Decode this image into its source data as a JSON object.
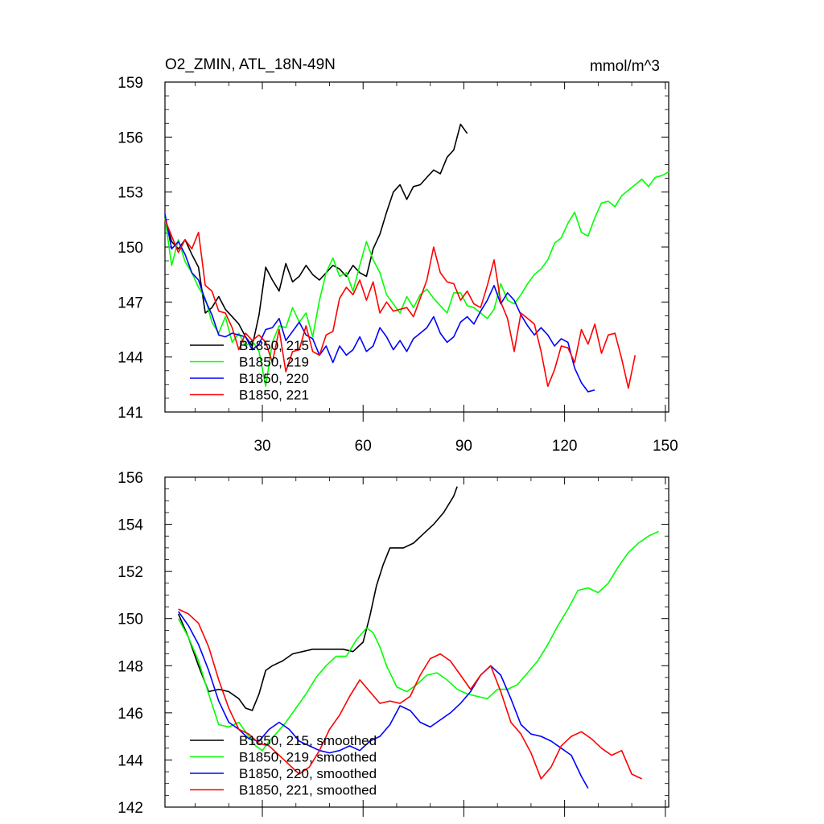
{
  "chart_data": [
    {
      "type": "line",
      "title": "O2_ZMIN, ATL_18N-49N",
      "units": "mmol/m^3",
      "xlim": [
        1,
        151
      ],
      "ylim": [
        141,
        159
      ],
      "xticks": [
        30,
        60,
        90,
        120,
        150
      ],
      "yticks": [
        141,
        144,
        147,
        150,
        153,
        156,
        159
      ],
      "show_xtick_labels": true,
      "legend_position": "bottom-left",
      "series": [
        {
          "name": "B1850, 215",
          "color": "#000000",
          "x": [
            1,
            3,
            5,
            7,
            9,
            11,
            13,
            15,
            17,
            19,
            21,
            23,
            25,
            27,
            29,
            31,
            33,
            35,
            37,
            39,
            41,
            43,
            45,
            47,
            49,
            51,
            53,
            55,
            57,
            59,
            61,
            63,
            65,
            67,
            69,
            71,
            73,
            75,
            77,
            79,
            81,
            83,
            85,
            87,
            89,
            91
          ],
          "y": [
            151.6,
            150.3,
            149.9,
            150.4,
            149.6,
            148.9,
            146.4,
            146.7,
            147.3,
            146.6,
            146.2,
            145.8,
            145.1,
            144.6,
            146.3,
            148.9,
            148.2,
            147.6,
            149.1,
            148.1,
            148.4,
            149.0,
            148.5,
            148.2,
            148.6,
            149.0,
            148.8,
            148.4,
            149.0,
            148.6,
            148.4,
            149.9,
            150.7,
            151.9,
            153.0,
            153.4,
            152.6,
            153.3,
            153.4,
            153.8,
            154.2,
            154.0,
            154.9,
            155.3,
            156.7,
            156.2
          ]
        },
        {
          "name": "B1850, 219",
          "color": "#00ff00",
          "x": [
            1,
            3,
            5,
            7,
            9,
            11,
            13,
            15,
            17,
            19,
            21,
            23,
            25,
            27,
            29,
            31,
            33,
            35,
            37,
            39,
            41,
            43,
            45,
            47,
            49,
            51,
            53,
            55,
            57,
            59,
            61,
            63,
            65,
            67,
            69,
            71,
            73,
            75,
            77,
            79,
            81,
            83,
            85,
            87,
            89,
            91,
            93,
            95,
            97,
            99,
            101,
            103,
            105,
            107,
            109,
            111,
            113,
            115,
            117,
            119,
            121,
            123,
            125,
            127,
            129,
            131,
            133,
            135,
            137,
            139,
            141,
            143,
            145,
            147,
            149,
            151
          ],
          "y": [
            151.6,
            149.0,
            150.4,
            149.2,
            148.6,
            147.8,
            147.2,
            145.9,
            145.3,
            146.2,
            144.8,
            145.3,
            144.6,
            144.9,
            144.3,
            142.4,
            144.8,
            145.7,
            145.6,
            146.7,
            145.9,
            146.4,
            145.1,
            147.1,
            148.6,
            149.4,
            148.4,
            148.6,
            147.6,
            149.0,
            150.3,
            149.3,
            148.6,
            147.4,
            146.9,
            146.4,
            147.3,
            146.7,
            147.4,
            147.7,
            147.2,
            146.8,
            146.4,
            147.5,
            147.5,
            146.8,
            146.7,
            146.4,
            146.1,
            146.6,
            148.0,
            147.1,
            146.9,
            147.4,
            148.0,
            148.5,
            148.8,
            149.3,
            150.2,
            150.5,
            151.3,
            151.9,
            150.8,
            150.6,
            151.6,
            152.4,
            152.5,
            152.2,
            152.8,
            153.1,
            153.4,
            153.7,
            153.3,
            153.8,
            153.9,
            154.1
          ]
        },
        {
          "name": "B1850, 220",
          "color": "#0000ff",
          "x": [
            1,
            3,
            5,
            7,
            9,
            11,
            13,
            15,
            17,
            19,
            21,
            23,
            25,
            27,
            29,
            31,
            33,
            35,
            37,
            39,
            41,
            43,
            45,
            47,
            49,
            51,
            53,
            55,
            57,
            59,
            61,
            63,
            65,
            67,
            69,
            71,
            73,
            75,
            77,
            79,
            81,
            83,
            85,
            87,
            89,
            91,
            93,
            95,
            97,
            99,
            101,
            103,
            105,
            107,
            109,
            111,
            113,
            115,
            117,
            119,
            121,
            123,
            125,
            127,
            129
          ],
          "y": [
            151.8,
            149.9,
            150.3,
            149.6,
            148.6,
            148.2,
            147.1,
            146.3,
            145.2,
            145.1,
            145.3,
            145.2,
            145.1,
            144.4,
            144.7,
            145.5,
            145.6,
            146.1,
            144.9,
            145.4,
            145.9,
            145.2,
            145.0,
            144.1,
            144.6,
            143.7,
            144.6,
            144.1,
            144.4,
            145.1,
            144.3,
            144.6,
            145.6,
            145.1,
            144.4,
            144.9,
            144.3,
            145.0,
            145.3,
            145.6,
            146.2,
            145.3,
            144.8,
            145.1,
            145.9,
            146.2,
            145.8,
            146.5,
            147.1,
            147.9,
            146.9,
            147.5,
            147.1,
            146.3,
            145.7,
            145.2,
            145.6,
            145.2,
            144.6,
            145.0,
            144.8,
            143.4,
            142.6,
            142.1,
            142.2
          ]
        },
        {
          "name": "B1850, 221",
          "color": "#ff0000",
          "x": [
            1,
            3,
            5,
            7,
            9,
            11,
            13,
            15,
            17,
            19,
            21,
            23,
            25,
            27,
            29,
            31,
            33,
            35,
            37,
            39,
            41,
            43,
            45,
            47,
            49,
            51,
            53,
            55,
            57,
            59,
            61,
            63,
            65,
            67,
            69,
            71,
            73,
            75,
            77,
            79,
            81,
            83,
            85,
            87,
            89,
            91,
            93,
            95,
            97,
            99,
            101,
            103,
            105,
            107,
            109,
            111,
            113,
            115,
            117,
            119,
            121,
            123,
            125,
            127,
            129,
            131,
            133,
            135,
            137,
            139,
            141
          ],
          "y": [
            151.5,
            150.6,
            149.7,
            150.4,
            149.9,
            150.8,
            147.9,
            147.6,
            146.5,
            146.4,
            145.6,
            144.4,
            145.3,
            144.9,
            145.2,
            144.8,
            143.7,
            145.5,
            143.2,
            144.3,
            144.4,
            145.7,
            144.3,
            144.1,
            145.2,
            145.4,
            147.2,
            147.8,
            147.4,
            148.2,
            147.1,
            148.1,
            146.4,
            147.0,
            146.5,
            146.6,
            146.7,
            146.2,
            147.2,
            148.2,
            150.0,
            148.6,
            148.1,
            148.0,
            147.1,
            147.6,
            146.9,
            146.7,
            147.9,
            149.3,
            147.0,
            146.1,
            144.3,
            146.4,
            146.1,
            145.8,
            144.3,
            142.4,
            143.3,
            144.6,
            144.5,
            143.7,
            145.5,
            144.7,
            145.8,
            144.2,
            145.2,
            145.3,
            143.9,
            142.3,
            144.1
          ]
        }
      ]
    },
    {
      "type": "line",
      "title": "",
      "xlim": [
        1,
        151
      ],
      "ylim": [
        142,
        156
      ],
      "xticks": [
        30,
        60,
        90,
        120,
        150
      ],
      "yticks": [
        142,
        144,
        146,
        148,
        150,
        152,
        154,
        156
      ],
      "show_xtick_labels": false,
      "legend_position": "bottom-left",
      "series": [
        {
          "name": "B1850, 215, smoothed",
          "color": "#000000",
          "x": [
            5,
            8,
            11,
            14,
            17,
            20,
            23,
            25,
            27,
            29,
            31,
            33,
            36,
            39,
            42,
            45,
            48,
            51,
            54,
            57,
            60,
            62,
            64,
            66,
            68,
            70,
            72,
            75,
            78,
            81,
            84,
            87,
            88
          ],
          "y": [
            150.2,
            149.2,
            148.0,
            146.9,
            147.0,
            146.9,
            146.6,
            146.2,
            146.1,
            146.8,
            147.8,
            148.0,
            148.2,
            148.5,
            148.6,
            148.7,
            148.7,
            148.7,
            148.7,
            148.6,
            149.0,
            150.1,
            151.4,
            152.3,
            153.0,
            153.0,
            153.0,
            153.2,
            153.6,
            154.0,
            154.5,
            155.2,
            155.6
          ]
        },
        {
          "name": "B1850, 219, smoothed",
          "color": "#00ff00",
          "x": [
            5,
            8,
            11,
            14,
            17,
            20,
            23,
            26,
            28,
            30,
            32,
            34,
            37,
            40,
            43,
            46,
            49,
            52,
            55,
            58,
            61,
            63,
            65,
            67,
            70,
            73,
            76,
            79,
            82,
            85,
            88,
            91,
            94,
            97,
            100,
            103,
            106,
            109,
            112,
            115,
            118,
            121,
            124,
            127,
            130,
            133,
            136,
            139,
            142,
            145,
            148
          ],
          "y": [
            150.0,
            149.2,
            148.2,
            146.8,
            145.5,
            145.4,
            145.6,
            145.0,
            144.6,
            144.4,
            144.8,
            145.1,
            145.6,
            146.2,
            146.8,
            147.5,
            148.0,
            148.4,
            148.4,
            149.1,
            149.6,
            149.4,
            148.8,
            148.0,
            147.1,
            146.9,
            147.2,
            147.6,
            147.7,
            147.4,
            147.0,
            146.8,
            146.7,
            146.6,
            147.0,
            147.0,
            147.2,
            147.7,
            148.2,
            148.9,
            149.7,
            150.4,
            151.2,
            151.3,
            151.1,
            151.5,
            152.2,
            152.8,
            153.2,
            153.5,
            153.7
          ]
        },
        {
          "name": "B1850, 220, smoothed",
          "color": "#0000ff",
          "x": [
            5,
            8,
            11,
            14,
            17,
            20,
            23,
            26,
            29,
            32,
            35,
            38,
            41,
            44,
            47,
            50,
            53,
            56,
            59,
            62,
            65,
            68,
            71,
            74,
            77,
            80,
            83,
            86,
            89,
            92,
            95,
            98,
            101,
            104,
            107,
            110,
            113,
            116,
            119,
            122,
            125,
            127
          ],
          "y": [
            150.3,
            149.7,
            148.9,
            147.8,
            146.5,
            145.6,
            145.3,
            144.9,
            144.8,
            145.3,
            145.6,
            145.3,
            144.8,
            144.6,
            144.4,
            144.3,
            144.4,
            144.6,
            144.4,
            144.8,
            145.0,
            145.5,
            146.3,
            146.1,
            145.6,
            145.4,
            145.7,
            146.0,
            146.4,
            146.9,
            147.6,
            148.0,
            147.6,
            146.6,
            145.5,
            145.1,
            145.0,
            144.8,
            144.5,
            144.2,
            143.3,
            142.8
          ]
        },
        {
          "name": "B1850, 221, smoothed",
          "color": "#ff0000",
          "x": [
            5,
            8,
            11,
            14,
            17,
            20,
            23,
            26,
            29,
            32,
            35,
            38,
            41,
            44,
            47,
            50,
            53,
            56,
            59,
            62,
            65,
            68,
            71,
            74,
            77,
            80,
            83,
            86,
            89,
            92,
            95,
            98,
            101,
            104,
            107,
            110,
            113,
            116,
            119,
            122,
            125,
            128,
            131,
            134,
            137,
            140,
            143
          ],
          "y": [
            150.4,
            150.2,
            149.8,
            148.8,
            147.4,
            146.2,
            145.3,
            145.1,
            144.7,
            144.6,
            144.2,
            143.8,
            143.4,
            143.7,
            144.4,
            145.3,
            145.9,
            146.7,
            147.4,
            146.9,
            146.4,
            146.5,
            146.4,
            146.7,
            147.6,
            148.3,
            148.5,
            148.2,
            147.6,
            147.0,
            147.6,
            148.0,
            146.9,
            145.6,
            145.1,
            144.3,
            143.2,
            143.7,
            144.6,
            145.0,
            145.2,
            144.9,
            144.5,
            144.2,
            144.4,
            143.4,
            143.2
          ]
        }
      ]
    }
  ]
}
